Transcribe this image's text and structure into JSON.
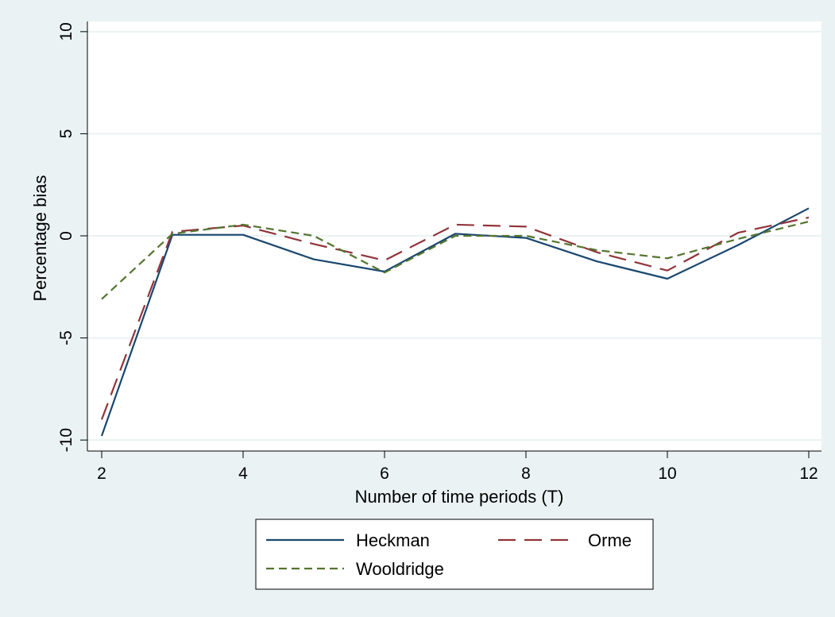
{
  "chart_data": {
    "type": "line",
    "title": "",
    "xlabel": "Number of time periods (T)",
    "ylabel": "Percentage bias",
    "xlim": [
      2,
      12
    ],
    "ylim": [
      -10.5,
      10.5
    ],
    "xticks": [
      2,
      4,
      6,
      8,
      10,
      12
    ],
    "yticks": [
      -10,
      -5,
      0,
      5,
      10
    ],
    "xtick_labels": [
      "2",
      "4",
      "6",
      "8",
      "10",
      "12"
    ],
    "ytick_labels": [
      "-10",
      "-5",
      "0",
      "5",
      "10"
    ],
    "grid": "horizontal",
    "legend_placement": "bottom",
    "x": [
      2,
      3,
      4,
      5,
      6,
      7,
      8,
      9,
      10,
      11,
      12
    ],
    "series": [
      {
        "name": "Heckman",
        "color": "#1a476f",
        "dash": "solid",
        "values": [
          -9.8,
          0.05,
          0.05,
          -1.15,
          -1.75,
          0.1,
          -0.1,
          -1.25,
          -2.1,
          -0.45,
          1.35
        ]
      },
      {
        "name": "Orme",
        "color": "#90353b",
        "dash": "long-dash",
        "values": [
          -9.0,
          0.2,
          0.5,
          -0.4,
          -1.2,
          0.55,
          0.45,
          -0.8,
          -1.7,
          0.15,
          0.9
        ]
      },
      {
        "name": "Wooldridge",
        "color": "#55752f",
        "dash": "short-dash",
        "values": [
          -3.1,
          0.1,
          0.55,
          0.0,
          -1.8,
          0.0,
          0.0,
          -0.7,
          -1.1,
          -0.15,
          0.7
        ]
      }
    ]
  }
}
